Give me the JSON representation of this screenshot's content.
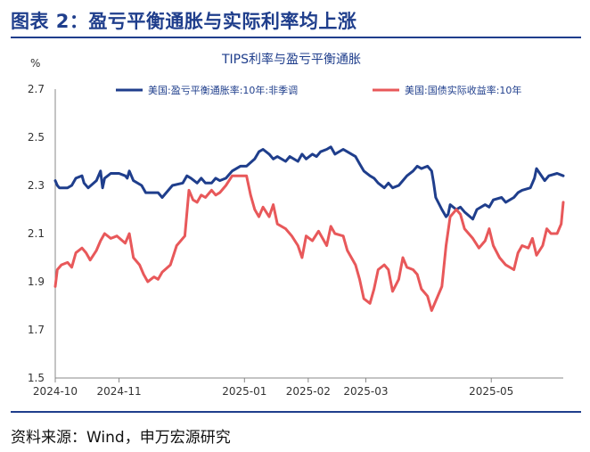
{
  "figure_title": "图表 2：盈亏平衡通胀与实际利率均上涨",
  "source_text": "资料来源：Wind，申万宏源研究",
  "colors": {
    "breakeven": "#1f3e8c",
    "real_yield": "#e8585a",
    "frame": "#1f3e8c",
    "axis": "#888888"
  },
  "chart_data": {
    "type": "line",
    "title": "TIPS利率与盈亏平衡通胀",
    "ylabel": "%",
    "ylim": [
      1.5,
      2.7
    ],
    "yticks": [
      "2.7",
      "2.5",
      "2.3",
      "2.1",
      "1.9",
      "1.7",
      "1.5"
    ],
    "xticks": [
      "2024-10",
      "2024-11",
      "2025-01",
      "2025-02",
      "2025-03",
      "2025-05"
    ],
    "xlim": [
      "2024-10-01",
      "2025-06-05"
    ],
    "legend_position": "top",
    "series": [
      {
        "name": "美国:盈亏平衡通胀率:10年:非季调",
        "color": "#1f3e8c",
        "points": [
          [
            "2024-10-01",
            2.32
          ],
          [
            "2024-10-02",
            2.3
          ],
          [
            "2024-10-03",
            2.29
          ],
          [
            "2024-10-07",
            2.29
          ],
          [
            "2024-10-09",
            2.3
          ],
          [
            "2024-10-11",
            2.33
          ],
          [
            "2024-10-14",
            2.34
          ],
          [
            "2024-10-15",
            2.31
          ],
          [
            "2024-10-17",
            2.29
          ],
          [
            "2024-10-21",
            2.32
          ],
          [
            "2024-10-23",
            2.36
          ],
          [
            "2024-10-24",
            2.29
          ],
          [
            "2024-10-25",
            2.33
          ],
          [
            "2024-10-28",
            2.35
          ],
          [
            "2024-10-31",
            2.35
          ],
          [
            "2024-11-01",
            2.35
          ],
          [
            "2024-11-04",
            2.34
          ],
          [
            "2024-11-05",
            2.33
          ],
          [
            "2024-11-06",
            2.36
          ],
          [
            "2024-11-08",
            2.32
          ],
          [
            "2024-11-12",
            2.3
          ],
          [
            "2024-11-14",
            2.27
          ],
          [
            "2024-11-18",
            2.27
          ],
          [
            "2024-11-20",
            2.27
          ],
          [
            "2024-11-22",
            2.25
          ],
          [
            "2024-11-25",
            2.28
          ],
          [
            "2024-11-27",
            2.3
          ],
          [
            "2024-12-02",
            2.31
          ],
          [
            "2024-12-04",
            2.34
          ],
          [
            "2024-12-06",
            2.33
          ],
          [
            "2024-12-09",
            2.31
          ],
          [
            "2024-12-11",
            2.33
          ],
          [
            "2024-12-13",
            2.31
          ],
          [
            "2024-12-16",
            2.31
          ],
          [
            "2024-12-18",
            2.33
          ],
          [
            "2024-12-20",
            2.32
          ],
          [
            "2024-12-23",
            2.33
          ],
          [
            "2024-12-26",
            2.36
          ],
          [
            "2024-12-30",
            2.38
          ],
          [
            "2025-01-02",
            2.38
          ],
          [
            "2025-01-06",
            2.41
          ],
          [
            "2025-01-08",
            2.44
          ],
          [
            "2025-01-10",
            2.45
          ],
          [
            "2025-01-13",
            2.43
          ],
          [
            "2025-01-15",
            2.41
          ],
          [
            "2025-01-17",
            2.42
          ],
          [
            "2025-01-21",
            2.4
          ],
          [
            "2025-01-23",
            2.42
          ],
          [
            "2025-01-27",
            2.4
          ],
          [
            "2025-01-29",
            2.43
          ],
          [
            "2025-01-31",
            2.41
          ],
          [
            "2025-02-03",
            2.43
          ],
          [
            "2025-02-05",
            2.42
          ],
          [
            "2025-02-07",
            2.44
          ],
          [
            "2025-02-10",
            2.45
          ],
          [
            "2025-02-12",
            2.46
          ],
          [
            "2025-02-14",
            2.43
          ],
          [
            "2025-02-18",
            2.45
          ],
          [
            "2025-02-20",
            2.44
          ],
          [
            "2025-02-24",
            2.42
          ],
          [
            "2025-02-26",
            2.39
          ],
          [
            "2025-02-28",
            2.36
          ],
          [
            "2025-03-03",
            2.34
          ],
          [
            "2025-03-05",
            2.33
          ],
          [
            "2025-03-07",
            2.31
          ],
          [
            "2025-03-10",
            2.29
          ],
          [
            "2025-03-12",
            2.31
          ],
          [
            "2025-03-14",
            2.29
          ],
          [
            "2025-03-17",
            2.3
          ],
          [
            "2025-03-19",
            2.32
          ],
          [
            "2025-03-21",
            2.34
          ],
          [
            "2025-03-24",
            2.36
          ],
          [
            "2025-03-26",
            2.38
          ],
          [
            "2025-03-28",
            2.37
          ],
          [
            "2025-03-31",
            2.38
          ],
          [
            "2025-04-02",
            2.36
          ],
          [
            "2025-04-03",
            2.31
          ],
          [
            "2025-04-04",
            2.25
          ],
          [
            "2025-04-07",
            2.2
          ],
          [
            "2025-04-09",
            2.17
          ],
          [
            "2025-04-10",
            2.18
          ],
          [
            "2025-04-11",
            2.22
          ],
          [
            "2025-04-14",
            2.2
          ],
          [
            "2025-04-16",
            2.21
          ],
          [
            "2025-04-18",
            2.19
          ],
          [
            "2025-04-22",
            2.16
          ],
          [
            "2025-04-24",
            2.2
          ],
          [
            "2025-04-28",
            2.22
          ],
          [
            "2025-04-30",
            2.21
          ],
          [
            "2025-05-02",
            2.24
          ],
          [
            "2025-05-06",
            2.25
          ],
          [
            "2025-05-08",
            2.23
          ],
          [
            "2025-05-12",
            2.25
          ],
          [
            "2025-05-14",
            2.27
          ],
          [
            "2025-05-16",
            2.28
          ],
          [
            "2025-05-20",
            2.29
          ],
          [
            "2025-05-22",
            2.33
          ],
          [
            "2025-05-23",
            2.37
          ],
          [
            "2025-05-27",
            2.32
          ],
          [
            "2025-05-29",
            2.34
          ],
          [
            "2025-06-02",
            2.35
          ],
          [
            "2025-06-05",
            2.34
          ]
        ]
      },
      {
        "name": "美国:国债实际收益率:10年",
        "color": "#e8585a",
        "points": [
          [
            "2024-10-01",
            1.88
          ],
          [
            "2024-10-02",
            1.95
          ],
          [
            "2024-10-04",
            1.97
          ],
          [
            "2024-10-07",
            1.98
          ],
          [
            "2024-10-09",
            1.96
          ],
          [
            "2024-10-11",
            2.02
          ],
          [
            "2024-10-14",
            2.04
          ],
          [
            "2024-10-16",
            2.02
          ],
          [
            "2024-10-18",
            1.99
          ],
          [
            "2024-10-21",
            2.03
          ],
          [
            "2024-10-23",
            2.07
          ],
          [
            "2024-10-25",
            2.1
          ],
          [
            "2024-10-28",
            2.08
          ],
          [
            "2024-10-31",
            2.09
          ],
          [
            "2024-11-04",
            2.06
          ],
          [
            "2024-11-06",
            2.1
          ],
          [
            "2024-11-08",
            2.0
          ],
          [
            "2024-11-11",
            1.97
          ],
          [
            "2024-11-13",
            1.93
          ],
          [
            "2024-11-15",
            1.9
          ],
          [
            "2024-11-18",
            1.92
          ],
          [
            "2024-11-20",
            1.91
          ],
          [
            "2024-11-22",
            1.94
          ],
          [
            "2024-11-26",
            1.97
          ],
          [
            "2024-11-29",
            2.05
          ],
          [
            "2024-12-03",
            2.09
          ],
          [
            "2024-12-05",
            2.28
          ],
          [
            "2024-12-07",
            2.24
          ],
          [
            "2024-12-09",
            2.23
          ],
          [
            "2024-12-11",
            2.26
          ],
          [
            "2024-12-13",
            2.25
          ],
          [
            "2024-12-16",
            2.28
          ],
          [
            "2024-12-18",
            2.26
          ],
          [
            "2024-12-20",
            2.27
          ],
          [
            "2024-12-23",
            2.3
          ],
          [
            "2024-12-26",
            2.34
          ],
          [
            "2024-12-30",
            2.34
          ],
          [
            "2025-01-02",
            2.34
          ],
          [
            "2025-01-04",
            2.26
          ],
          [
            "2025-01-06",
            2.2
          ],
          [
            "2025-01-08",
            2.17
          ],
          [
            "2025-01-10",
            2.21
          ],
          [
            "2025-01-13",
            2.17
          ],
          [
            "2025-01-15",
            2.22
          ],
          [
            "2025-01-17",
            2.14
          ],
          [
            "2025-01-21",
            2.12
          ],
          [
            "2025-01-24",
            2.09
          ],
          [
            "2025-01-27",
            2.05
          ],
          [
            "2025-01-29",
            2.0
          ],
          [
            "2025-01-31",
            2.09
          ],
          [
            "2025-02-03",
            2.07
          ],
          [
            "2025-02-06",
            2.11
          ],
          [
            "2025-02-10",
            2.05
          ],
          [
            "2025-02-12",
            2.13
          ],
          [
            "2025-02-14",
            2.1
          ],
          [
            "2025-02-18",
            2.09
          ],
          [
            "2025-02-20",
            2.03
          ],
          [
            "2025-02-24",
            1.97
          ],
          [
            "2025-02-26",
            1.91
          ],
          [
            "2025-02-28",
            1.83
          ],
          [
            "2025-03-03",
            1.81
          ],
          [
            "2025-03-05",
            1.87
          ],
          [
            "2025-03-07",
            1.95
          ],
          [
            "2025-03-10",
            1.97
          ],
          [
            "2025-03-12",
            1.95
          ],
          [
            "2025-03-14",
            1.86
          ],
          [
            "2025-03-17",
            1.91
          ],
          [
            "2025-03-19",
            2.0
          ],
          [
            "2025-03-21",
            1.96
          ],
          [
            "2025-03-24",
            1.95
          ],
          [
            "2025-03-26",
            1.93
          ],
          [
            "2025-03-28",
            1.87
          ],
          [
            "2025-03-31",
            1.84
          ],
          [
            "2025-04-02",
            1.78
          ],
          [
            "2025-04-04",
            1.82
          ],
          [
            "2025-04-07",
            1.88
          ],
          [
            "2025-04-09",
            2.05
          ],
          [
            "2025-04-11",
            2.17
          ],
          [
            "2025-04-14",
            2.2
          ],
          [
            "2025-04-16",
            2.18
          ],
          [
            "2025-04-18",
            2.12
          ],
          [
            "2025-04-22",
            2.08
          ],
          [
            "2025-04-25",
            2.04
          ],
          [
            "2025-04-28",
            2.07
          ],
          [
            "2025-04-30",
            2.12
          ],
          [
            "2025-05-02",
            2.05
          ],
          [
            "2025-05-05",
            2.0
          ],
          [
            "2025-05-08",
            1.97
          ],
          [
            "2025-05-12",
            1.95
          ],
          [
            "2025-05-14",
            2.02
          ],
          [
            "2025-05-16",
            2.05
          ],
          [
            "2025-05-19",
            2.04
          ],
          [
            "2025-05-21",
            2.08
          ],
          [
            "2025-05-23",
            2.01
          ],
          [
            "2025-05-26",
            2.05
          ],
          [
            "2025-05-28",
            2.12
          ],
          [
            "2025-05-30",
            2.1
          ],
          [
            "2025-06-02",
            2.1
          ],
          [
            "2025-06-04",
            2.14
          ],
          [
            "2025-06-05",
            2.23
          ]
        ]
      }
    ]
  }
}
